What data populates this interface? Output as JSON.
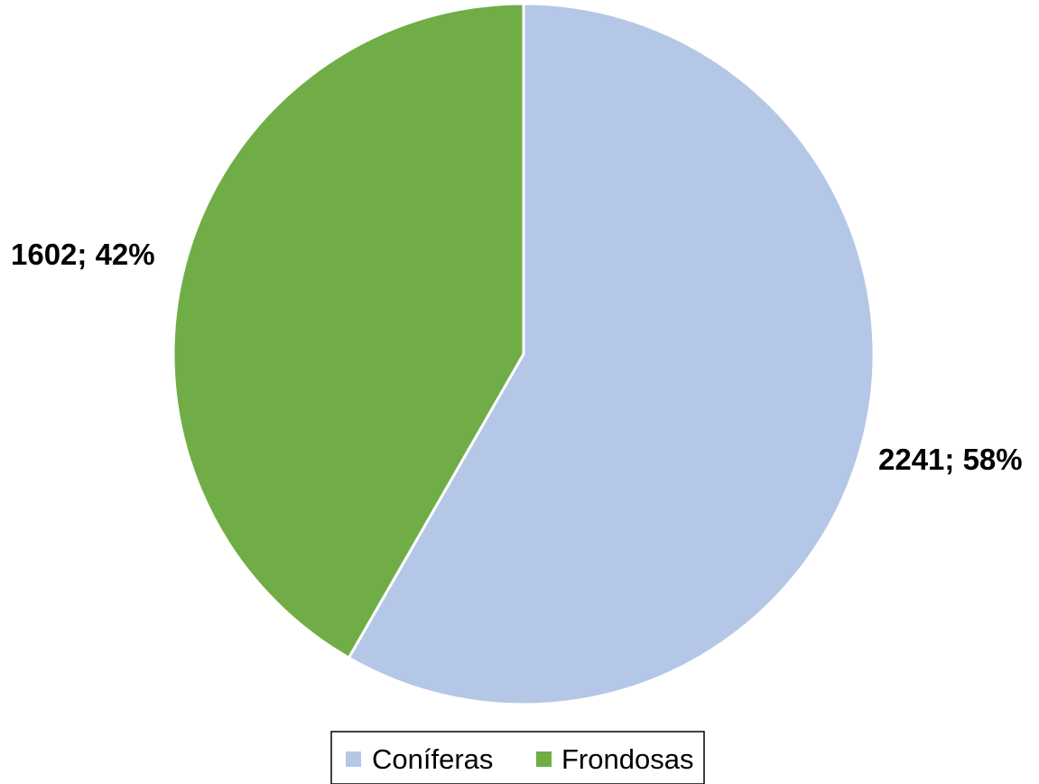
{
  "chart_data": {
    "type": "pie",
    "categories": [
      "Coníferas",
      "Frondosas"
    ],
    "values": [
      2241,
      1602
    ],
    "percentages": [
      58,
      42
    ],
    "data_labels": [
      "2241; 58%",
      "1602; 42%"
    ],
    "colors": [
      "#b4c7e7",
      "#70ad47"
    ],
    "legend_position": "bottom",
    "start_angle_deg": 0,
    "direction": "clockwise"
  }
}
